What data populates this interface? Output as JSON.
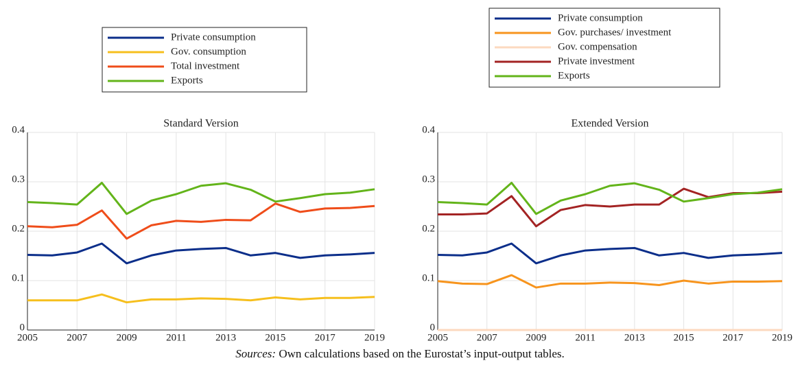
{
  "chart_data": [
    {
      "type": "line",
      "title": "Standard Version",
      "x": [
        2005,
        2006,
        2007,
        2008,
        2009,
        2010,
        2011,
        2012,
        2013,
        2014,
        2015,
        2016,
        2017,
        2018,
        2019
      ],
      "xlim": [
        2005,
        2019
      ],
      "xticks": [
        2005,
        2007,
        2009,
        2011,
        2013,
        2015,
        2017,
        2019
      ],
      "ylim": [
        0,
        0.4
      ],
      "yticks": [
        0,
        0.1,
        0.2,
        0.3,
        0.4
      ],
      "grid": true,
      "series": [
        {
          "name": "Private consumption",
          "color": "#0b2e8a",
          "values": [
            0.152,
            0.151,
            0.157,
            0.175,
            0.135,
            0.151,
            0.161,
            0.164,
            0.166,
            0.151,
            0.156,
            0.146,
            0.151,
            0.153,
            0.156
          ]
        },
        {
          "name": "Gov. consumption",
          "color": "#f6bf1d",
          "values": [
            0.06,
            0.06,
            0.06,
            0.072,
            0.056,
            0.062,
            0.062,
            0.064,
            0.063,
            0.06,
            0.066,
            0.062,
            0.065,
            0.065,
            0.067
          ]
        },
        {
          "name": "Total investment",
          "color": "#ef4d1a",
          "values": [
            0.21,
            0.208,
            0.213,
            0.242,
            0.185,
            0.212,
            0.221,
            0.219,
            0.223,
            0.222,
            0.256,
            0.239,
            0.246,
            0.247,
            0.251
          ]
        },
        {
          "name": "Exports",
          "color": "#63b41a",
          "values": [
            0.259,
            0.257,
            0.254,
            0.298,
            0.235,
            0.262,
            0.275,
            0.292,
            0.297,
            0.284,
            0.26,
            0.267,
            0.275,
            0.278,
            0.285
          ]
        }
      ]
    },
    {
      "type": "line",
      "title": "Extended Version",
      "x": [
        2005,
        2006,
        2007,
        2008,
        2009,
        2010,
        2011,
        2012,
        2013,
        2014,
        2015,
        2016,
        2017,
        2018,
        2019
      ],
      "xlim": [
        2005,
        2019
      ],
      "xticks": [
        2005,
        2007,
        2009,
        2011,
        2013,
        2015,
        2017,
        2019
      ],
      "ylim": [
        0,
        0.4
      ],
      "yticks": [
        0,
        0.1,
        0.2,
        0.3,
        0.4
      ],
      "grid": true,
      "series": [
        {
          "name": "Private consumption",
          "color": "#0b2e8a",
          "values": [
            0.152,
            0.151,
            0.157,
            0.175,
            0.135,
            0.151,
            0.161,
            0.164,
            0.166,
            0.151,
            0.156,
            0.146,
            0.151,
            0.153,
            0.156
          ]
        },
        {
          "name": "Gov. purchases/ investment",
          "color": "#f7941d",
          "values": [
            0.099,
            0.094,
            0.093,
            0.111,
            0.086,
            0.094,
            0.094,
            0.096,
            0.095,
            0.091,
            0.1,
            0.094,
            0.098,
            0.098,
            0.099
          ]
        },
        {
          "name": "Gov. compensation",
          "color": "#fcd9bf",
          "values": [
            0,
            0,
            0,
            0,
            0,
            0,
            0,
            0,
            0,
            0,
            0,
            0,
            0,
            0,
            0
          ]
        },
        {
          "name": "Private investment",
          "color": "#a32323",
          "values": [
            0.234,
            0.234,
            0.236,
            0.271,
            0.21,
            0.243,
            0.253,
            0.25,
            0.254,
            0.254,
            0.286,
            0.269,
            0.277,
            0.277,
            0.28
          ]
        },
        {
          "name": "Exports",
          "color": "#63b41a",
          "values": [
            0.259,
            0.257,
            0.254,
            0.298,
            0.235,
            0.262,
            0.275,
            0.292,
            0.297,
            0.284,
            0.26,
            0.267,
            0.275,
            0.278,
            0.285
          ]
        }
      ]
    }
  ],
  "caption": {
    "label": "Sources:",
    "text": "Own calculations based on the Eurostat’s input-output tables."
  }
}
